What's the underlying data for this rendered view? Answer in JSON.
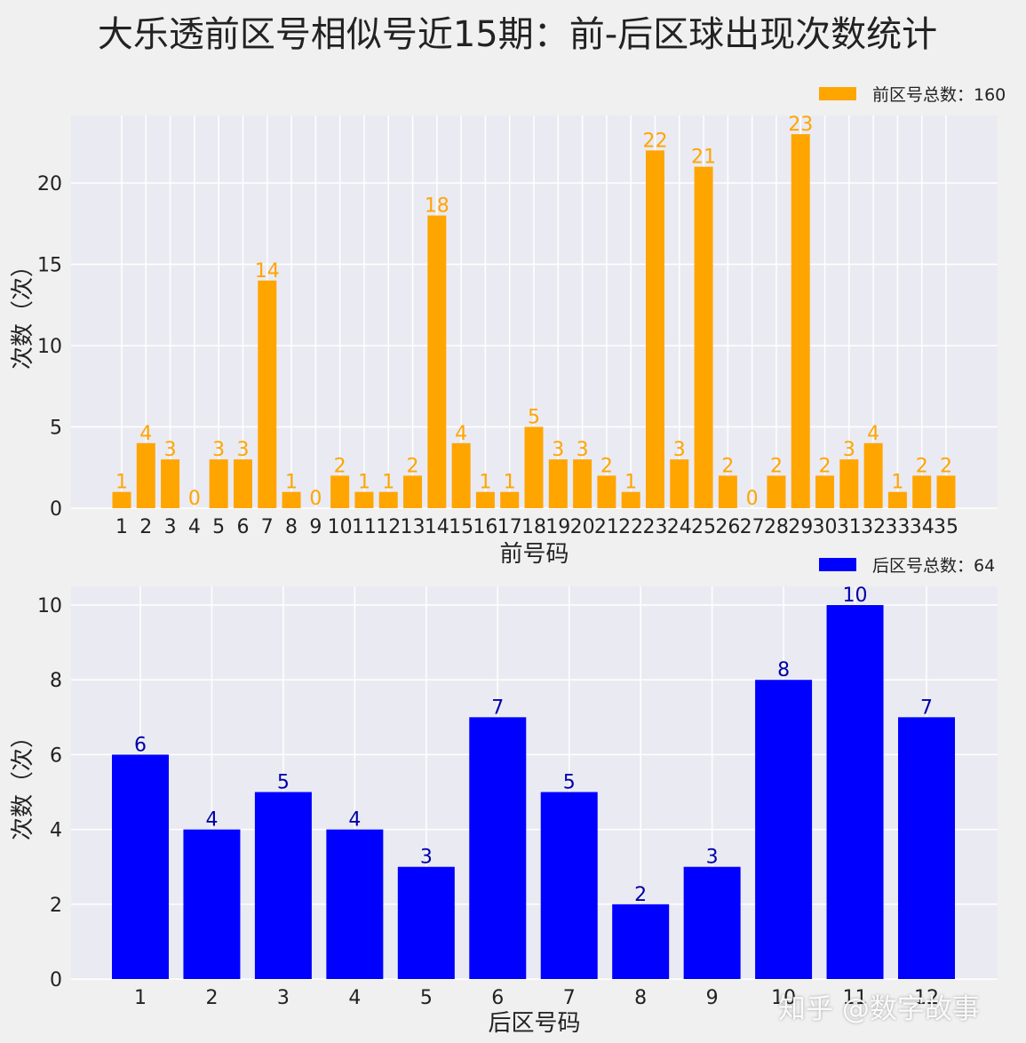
{
  "figure_title": "大乐透前区号相似号近15期：前-后区球出现次数统计",
  "watermark": "知乎 @数字故事",
  "colors": {
    "background": "#f0f0f0",
    "plot_bg": "#eaeaf2",
    "grid": "#ffffff",
    "front_bar": "#ffa500",
    "back_bar": "#0000ff",
    "back_label": "#0000aa",
    "text": "#222222"
  },
  "chart_data": [
    {
      "type": "bar",
      "xlabel": "前号码",
      "ylabel": "次数（次）",
      "legend": "前区号总数：160",
      "legend_position": "top-right",
      "grid": true,
      "ylim": [
        0,
        24.15
      ],
      "yticks": [
        0,
        5,
        10,
        15,
        20
      ],
      "categories": [
        "1",
        "2",
        "3",
        "4",
        "5",
        "6",
        "7",
        "8",
        "9",
        "10",
        "11",
        "12",
        "13",
        "14",
        "15",
        "16",
        "17",
        "18",
        "19",
        "20",
        "21",
        "22",
        "23",
        "24",
        "25",
        "26",
        "27",
        "28",
        "29",
        "30",
        "31",
        "32",
        "33",
        "34",
        "35"
      ],
      "values": [
        1,
        4,
        3,
        0,
        3,
        3,
        14,
        1,
        0,
        2,
        1,
        1,
        2,
        18,
        4,
        1,
        1,
        5,
        3,
        3,
        2,
        1,
        22,
        3,
        21,
        2,
        0,
        2,
        23,
        2,
        3,
        4,
        1,
        2,
        2
      ]
    },
    {
      "type": "bar",
      "xlabel": "后区号码",
      "ylabel": "次数（次）",
      "legend": "后区号总数：64",
      "legend_position": "top-right",
      "grid": true,
      "ylim": [
        0,
        10.5
      ],
      "yticks": [
        0,
        2,
        4,
        6,
        8,
        10
      ],
      "categories": [
        "1",
        "2",
        "3",
        "4",
        "5",
        "6",
        "7",
        "8",
        "9",
        "10",
        "11",
        "12"
      ],
      "values": [
        6,
        4,
        5,
        4,
        3,
        7,
        5,
        2,
        3,
        8,
        10,
        7
      ]
    }
  ]
}
